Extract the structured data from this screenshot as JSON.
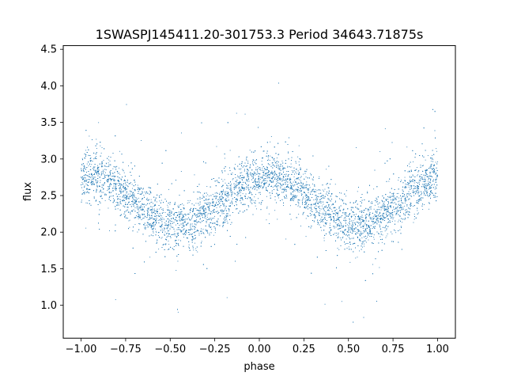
{
  "chart_data": {
    "type": "scatter",
    "title": "1SWASPJ145411.20-301753.3 Period 34643.71875s",
    "xlabel": "phase",
    "ylabel": "flux",
    "xlim": [
      -1.1,
      1.1
    ],
    "ylim": [
      0.55,
      4.55
    ],
    "x_ticks": [
      "−1.00",
      "−0.75",
      "−0.50",
      "−0.25",
      "0.00",
      "0.25",
      "0.50",
      "0.75",
      "1.00"
    ],
    "x_tick_values": [
      -1.0,
      -0.75,
      -0.5,
      -0.25,
      0.0,
      0.25,
      0.5,
      0.75,
      1.0
    ],
    "y_ticks": [
      "1.0",
      "1.5",
      "2.0",
      "2.5",
      "3.0",
      "3.5",
      "4.0",
      "4.5"
    ],
    "y_tick_values": [
      1.0,
      1.5,
      2.0,
      2.5,
      3.0,
      3.5,
      4.0,
      4.5
    ],
    "grid": false,
    "point_color": "#1f77b4",
    "series": [
      {
        "values_description_points": [
          [
            -1.0,
            2.75
          ],
          [
            -0.9,
            2.75
          ],
          [
            -0.8,
            2.7
          ],
          [
            -0.7,
            2.55
          ],
          [
            -0.6,
            2.35
          ],
          [
            -0.5,
            2.15
          ],
          [
            -0.45,
            2.05
          ],
          [
            -0.4,
            2.15
          ],
          [
            -0.3,
            2.4
          ],
          [
            -0.2,
            2.6
          ],
          [
            -0.1,
            2.7
          ],
          [
            0.0,
            2.75
          ],
          [
            0.05,
            2.78
          ],
          [
            0.1,
            2.75
          ],
          [
            0.2,
            2.65
          ],
          [
            0.3,
            2.45
          ],
          [
            0.4,
            2.25
          ],
          [
            0.5,
            2.1
          ],
          [
            0.55,
            2.05
          ],
          [
            0.6,
            2.15
          ],
          [
            0.7,
            2.35
          ],
          [
            0.8,
            2.55
          ],
          [
            0.9,
            2.7
          ],
          [
            1.0,
            2.75
          ]
        ]
      }
    ]
  }
}
